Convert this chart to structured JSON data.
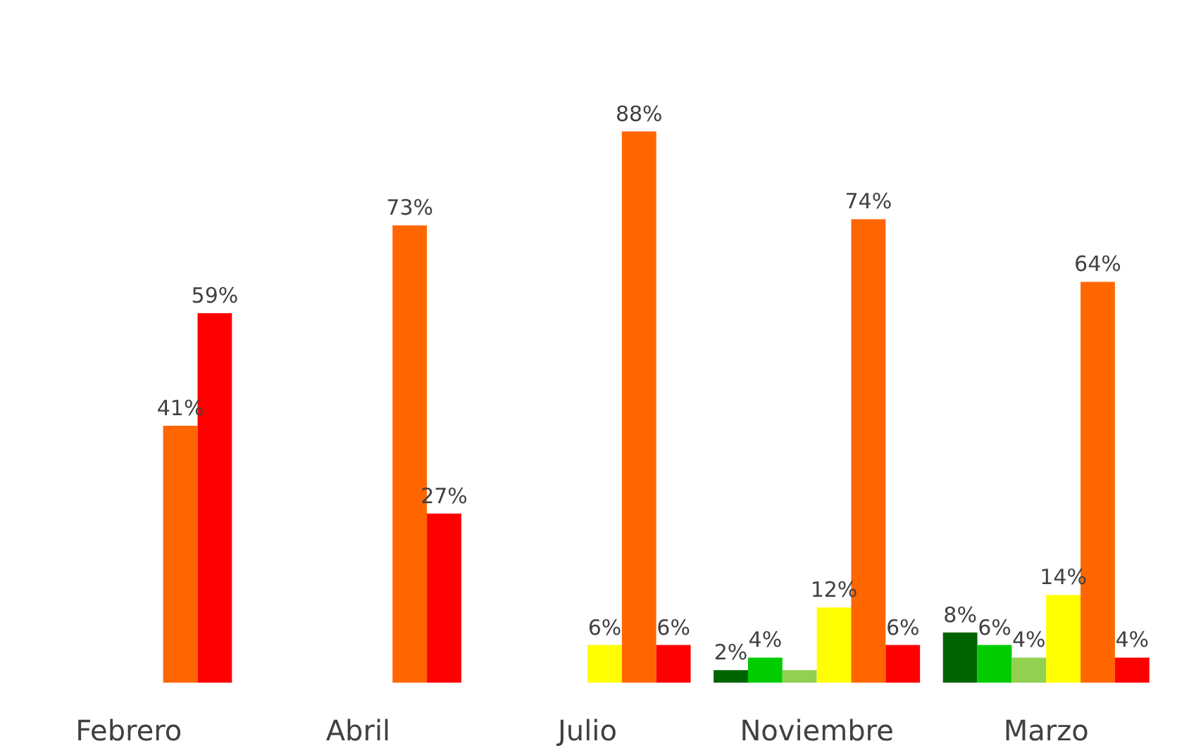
{
  "chart_data": {
    "type": "bar",
    "categories": [
      "Febrero",
      "Abril",
      "Julio",
      "Noviembre",
      "Marzo"
    ],
    "series": [
      {
        "color": "#006400",
        "values": [
          0,
          0,
          0,
          2,
          8
        ],
        "value_labels": [
          null,
          null,
          null,
          "2%",
          "8%"
        ]
      },
      {
        "color": "#00cc00",
        "values": [
          0,
          0,
          0,
          4,
          6
        ],
        "value_labels": [
          null,
          null,
          null,
          "4%",
          "6%"
        ]
      },
      {
        "color": "#92d050",
        "values": [
          0,
          0,
          0,
          2,
          4
        ],
        "value_labels": [
          null,
          null,
          null,
          null,
          "4%"
        ]
      },
      {
        "color": "#ffff00",
        "values": [
          0,
          0,
          6,
          12,
          14
        ],
        "value_labels": [
          null,
          null,
          "6%",
          "12%",
          "14%"
        ]
      },
      {
        "color": "#ff6600",
        "values": [
          41,
          73,
          88,
          74,
          64
        ],
        "value_labels": [
          "41%",
          "73%",
          "88%",
          "74%",
          "64%"
        ]
      },
      {
        "color": "#ff0000",
        "values": [
          59,
          27,
          6,
          6,
          4
        ],
        "value_labels": [
          "59%",
          "27%",
          "6%",
          "6%",
          "4%"
        ]
      }
    ],
    "grid": false
  }
}
